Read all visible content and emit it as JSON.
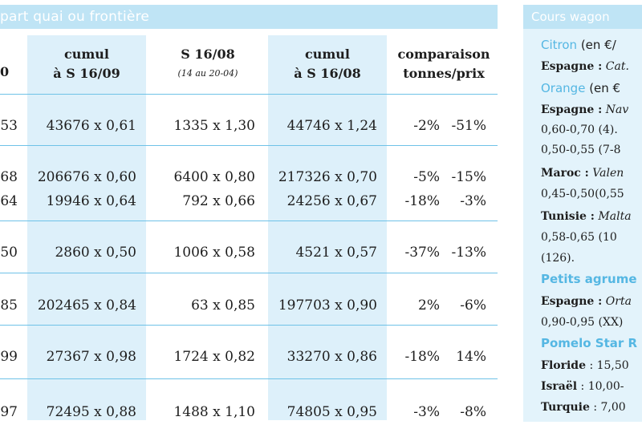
{
  "left": {
    "title": "part quai ou frontière",
    "headers": {
      "col0": "0",
      "col1_line1": "cumul",
      "col1_line2": "à S 16/09",
      "col2_line1": "S 16/08",
      "col2_line2": "(14 au 20-04)",
      "col3_line1": "cumul",
      "col3_line2": "à S 16/08",
      "col4_line1": "comparaison",
      "col4_line2": "tonnes/prix"
    },
    "rows": [
      {
        "c0": "53",
        "c1": "43676 x 0,61",
        "c2": "1335 x 1,30",
        "c3": "44746 x 1,24",
        "t": "-2%",
        "p": "-51%"
      },
      {
        "c0": "68",
        "c1": "206676 x 0,60",
        "c2": "6400 x 0,80",
        "c3": "217326 x 0,70",
        "t": "-5%",
        "p": "-15%"
      },
      {
        "c0": "64",
        "c1": "19946 x 0,64",
        "c2": "792 x 0,66",
        "c3": "24256 x 0,67",
        "t": "-18%",
        "p": "-3%"
      },
      {
        "c0": "50",
        "c1": "2860 x 0,50",
        "c2": "1006 x 0,58",
        "c3": "4521 x 0,57",
        "t": "-37%",
        "p": "-13%"
      },
      {
        "c0": "85",
        "c1": "202465 x 0,84",
        "c2": "63 x 0,85",
        "c3": "197703 x 0,90",
        "t": "2%",
        "p": "-6%"
      },
      {
        "c0": "99",
        "c1": "27367 x 0,98",
        "c2": "1724 x 0,82",
        "c3": "33270 x 0,86",
        "t": "-18%",
        "p": "14%"
      },
      {
        "c0": "97",
        "c1": "72495 x 0,88",
        "c2": "1488 x 1,10",
        "c3": "74805 x 0,95",
        "t": "-3%",
        "p": "-8%"
      }
    ]
  },
  "right": {
    "title": "Cours wagon",
    "lines": [
      {
        "prod": "Citron",
        "unit": " (en €/"
      },
      {
        "cty": "Espagne :",
        "txt": " Cat."
      },
      {
        "prod": "Orange",
        "unit": " (en €"
      },
      {
        "cty": "Espagne :",
        "txt": " Nav"
      },
      {
        "plain": "0,60-0,70 (4). "
      },
      {
        "plain": "0,50-0,55 (7-8"
      },
      {
        "cty": "Maroc :",
        "txt": " Valen"
      },
      {
        "plain": "0,45-0,50(0,55"
      },
      {
        "cty": "Tunisie :",
        "txt": " Malta"
      },
      {
        "plain": "0,58-0,65   (10"
      },
      {
        "plain": "(126)."
      },
      {
        "prodb": "Petits agrume"
      },
      {
        "cty": "Espagne :",
        "txt": " Orta"
      },
      {
        "plain": "0,90-0,95 (XX)"
      },
      {
        "prodb": "Pomelo Star R"
      },
      {
        "cty": "Floride",
        "plain2": " : 15,50"
      },
      {
        "cty": "Israël",
        "plain2": " : 10,00-"
      },
      {
        "cty": "Turquie",
        "plain2": " : 7,00"
      }
    ]
  }
}
